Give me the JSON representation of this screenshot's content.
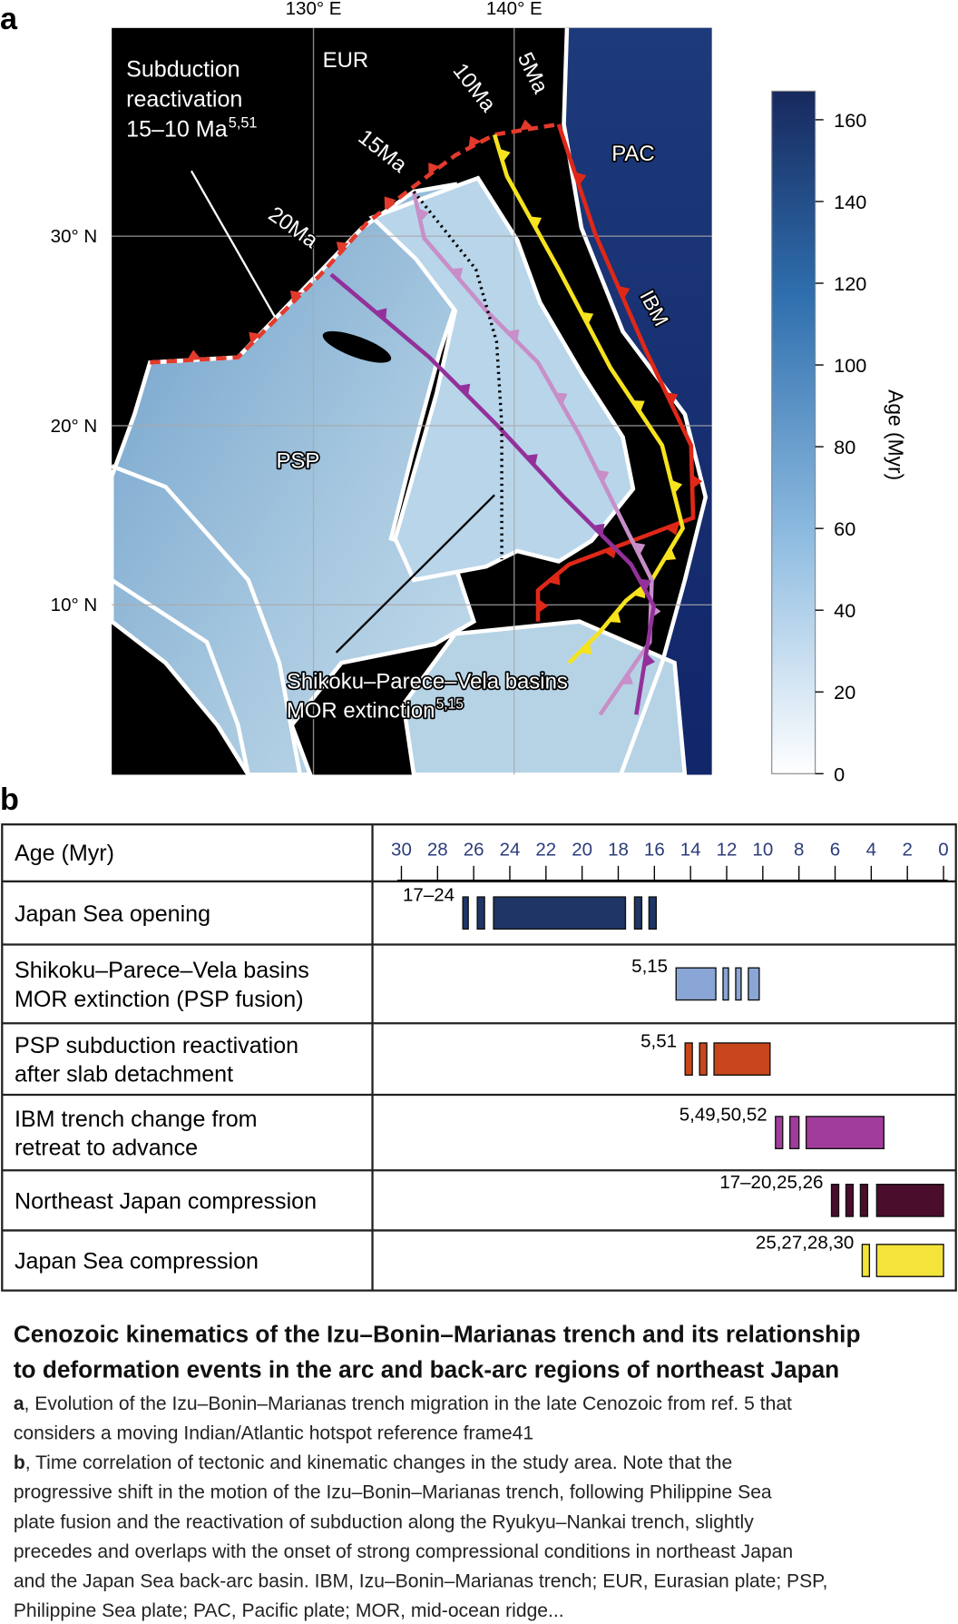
{
  "panel_a": {
    "label": "a",
    "lon_labels": [
      "130° E",
      "140° E"
    ],
    "lat_labels": [
      "30° N",
      "20° N",
      "10° N"
    ],
    "plate_labels": [
      "EUR",
      "PAC",
      "PSP"
    ],
    "trench_label": "IBM",
    "isochron_labels": [
      "5Ma",
      "10Ma",
      "15Ma",
      "20Ma"
    ],
    "reactivation": {
      "lines": [
        "Subduction",
        "reactivation",
        "15–10 Ma"
      ],
      "sup": "5,51"
    },
    "extinction": {
      "lines": [
        "Shikoku–Parece–Vela basins",
        "MOR extinction"
      ],
      "sup": "5,15"
    },
    "colorbar": {
      "title": "Age (Myr)",
      "lim": [
        0,
        167
      ],
      "ticks": [
        0,
        20,
        40,
        60,
        80,
        100,
        120,
        140,
        160
      ]
    }
  },
  "panel_b": {
    "label": "b",
    "header": "Age (Myr)",
    "lim": [
      30,
      0
    ],
    "ticks": [
      30,
      28,
      26,
      24,
      22,
      20,
      18,
      16,
      14,
      12,
      10,
      8,
      6,
      4,
      2,
      0
    ],
    "rows": [
      {
        "label": [
          "Japan Sea opening"
        ],
        "ref": "17–24",
        "color": "#1f3566",
        "intervals": [
          [
            26.6,
            26.3
          ],
          [
            25.8,
            25.4
          ],
          [
            24.9,
            17.6
          ],
          [
            17.1,
            16.7
          ],
          [
            16.3,
            15.9
          ]
        ]
      },
      {
        "label": [
          "Shikoku–Parece–Vela basins",
          "MOR extinction  (PSP fusion)"
        ],
        "ref": "5,15",
        "color": "#8aa6d6",
        "intervals": [
          [
            14.8,
            12.6
          ],
          [
            12.2,
            11.9
          ],
          [
            11.5,
            11.2
          ],
          [
            10.8,
            10.2
          ]
        ]
      },
      {
        "label": [
          "PSP subduction reactivation",
          "after slab detachment"
        ],
        "ref": "5,51",
        "color": "#c9461c",
        "intervals": [
          [
            14.3,
            13.9
          ],
          [
            13.5,
            13.1
          ],
          [
            12.7,
            9.6
          ]
        ]
      },
      {
        "label": [
          "IBM trench change from",
          "retreat to advance"
        ],
        "ref": "5,49,50,52",
        "color": "#a23c9c",
        "intervals": [
          [
            9.3,
            8.9
          ],
          [
            8.5,
            8.0
          ],
          [
            7.6,
            3.3
          ]
        ]
      },
      {
        "label": [
          "Northeast Japan compression"
        ],
        "ref": "17–20,25,26",
        "color": "#4a0e2c",
        "intervals": [
          [
            6.2,
            5.8
          ],
          [
            5.4,
            5.0
          ],
          [
            4.6,
            4.2
          ],
          [
            3.7,
            0
          ]
        ]
      },
      {
        "label": [
          "Japan Sea compression"
        ],
        "ref": "25,27,28,30",
        "color": "#f4e43a",
        "intervals": [
          [
            4.5,
            4.1
          ],
          [
            3.7,
            0
          ]
        ]
      }
    ]
  },
  "caption": {
    "title": [
      "Cenozoic kinematics of the Izu–Bonin–Marianas trench and its relationship",
      "to deformation events in the arc and back-arc regions of northeast Japan"
    ],
    "paragraphs": [
      {
        "label": "a",
        "lines": [
          ", Evolution of the Izu–Bonin–Marianas trench migration in the late Cenozoic from ref. 5 that",
          "considers a moving Indian/Atlantic hotspot reference frame41"
        ]
      },
      {
        "label": "b",
        "lines": [
          ", Time correlation of tectonic and kinematic changes in the study area. Note that the",
          "progressive shift in the motion of the Izu–Bonin–Marianas trench, following Philippine Sea",
          "plate fusion and the reactivation of subduction along the Ryukyu–Nankai trench, slightly",
          "precedes and overlaps with the onset of strong compressional conditions in northeast Japan",
          "and the Japan Sea back-arc basin. IBM, Izu–Bonin–Marianas trench; EUR, Eurasian plate; PSP,",
          "Philippine Sea plate; PAC, Pacific plate; MOR, mid-ocean ridge..."
        ]
      }
    ]
  }
}
